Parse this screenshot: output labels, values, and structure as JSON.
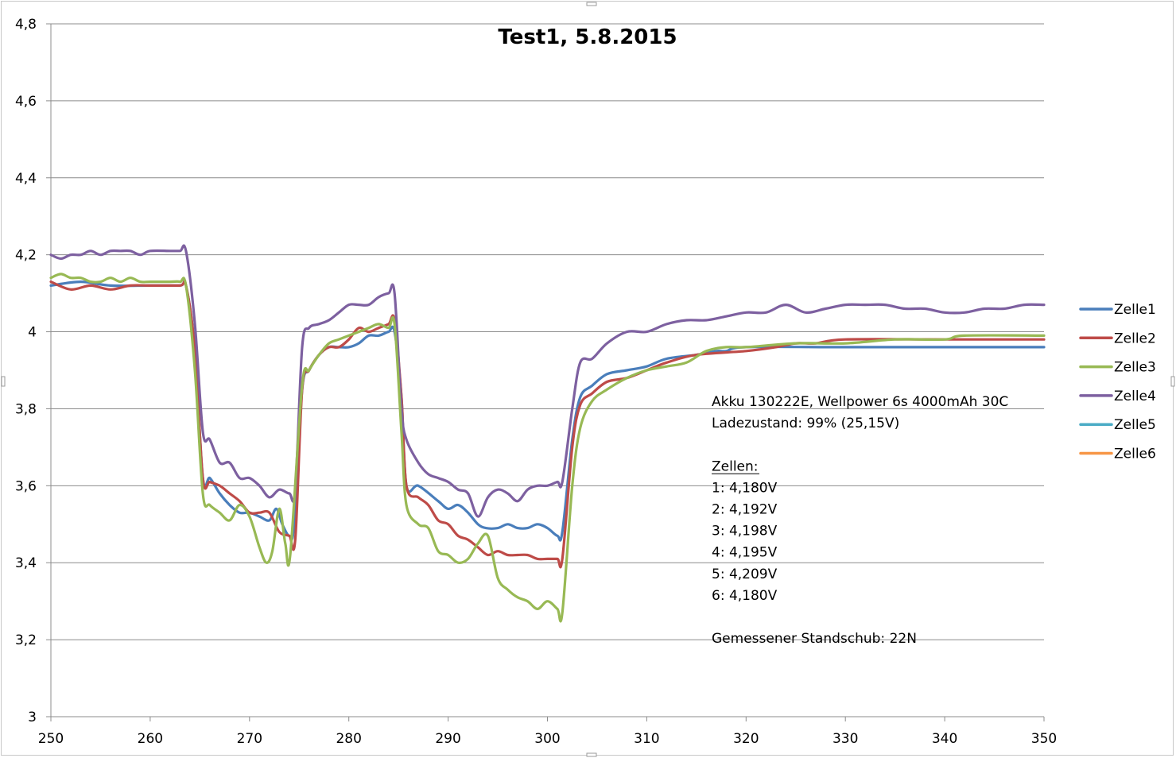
{
  "chart_data": {
    "type": "line",
    "title": "Test1, 5.8.2015",
    "xlabel": "",
    "ylabel": "",
    "xlim": [
      250,
      350
    ],
    "ylim": [
      3,
      4.8
    ],
    "x_ticks": [
      "250",
      "260",
      "270",
      "280",
      "290",
      "300",
      "310",
      "320",
      "330",
      "340",
      "350"
    ],
    "y_ticks": [
      "3",
      "3,2",
      "3,4",
      "3,6",
      "3,8",
      "4",
      "4,2",
      "4,4",
      "4,6",
      "4,8"
    ],
    "grid": "horizontal",
    "legend_position": "right",
    "series": [
      {
        "name": "Zelle1",
        "color": "#4a7ebb",
        "points": [
          [
            250,
            4.12
          ],
          [
            253,
            4.13
          ],
          [
            256,
            4.12
          ],
          [
            260,
            4.12
          ],
          [
            263,
            4.12
          ],
          [
            263.6,
            4.12
          ],
          [
            264.5,
            3.95
          ],
          [
            265.3,
            3.62
          ],
          [
            266,
            3.62
          ],
          [
            267,
            3.58
          ],
          [
            268,
            3.55
          ],
          [
            269,
            3.53
          ],
          [
            270,
            3.53
          ],
          [
            271,
            3.52
          ],
          [
            272,
            3.51
          ],
          [
            272.7,
            3.54
          ],
          [
            273.3,
            3.5
          ],
          [
            274,
            3.47
          ],
          [
            274.5,
            3.5
          ],
          [
            275.3,
            3.85
          ],
          [
            276,
            3.9
          ],
          [
            277,
            3.94
          ],
          [
            278,
            3.96
          ],
          [
            279,
            3.96
          ],
          [
            280,
            3.96
          ],
          [
            281,
            3.97
          ],
          [
            282,
            3.99
          ],
          [
            283,
            3.99
          ],
          [
            284,
            4.0
          ],
          [
            284.6,
            4.0
          ],
          [
            285.3,
            3.83
          ],
          [
            285.8,
            3.6
          ],
          [
            287,
            3.6
          ],
          [
            289,
            3.56
          ],
          [
            290,
            3.54
          ],
          [
            291,
            3.55
          ],
          [
            292,
            3.53
          ],
          [
            293,
            3.5
          ],
          [
            293.8,
            3.49
          ],
          [
            295,
            3.49
          ],
          [
            296,
            3.5
          ],
          [
            297,
            3.49
          ],
          [
            298,
            3.49
          ],
          [
            299,
            3.5
          ],
          [
            300,
            3.49
          ],
          [
            301,
            3.47
          ],
          [
            301.5,
            3.48
          ],
          [
            302.5,
            3.72
          ],
          [
            303.3,
            3.83
          ],
          [
            304.5,
            3.86
          ],
          [
            306,
            3.89
          ],
          [
            308,
            3.9
          ],
          [
            310,
            3.91
          ],
          [
            312,
            3.93
          ],
          [
            315,
            3.94
          ],
          [
            317,
            3.95
          ],
          [
            318,
            3.95
          ],
          [
            320,
            3.96
          ],
          [
            330,
            3.96
          ],
          [
            340,
            3.96
          ],
          [
            350,
            3.96
          ]
        ]
      },
      {
        "name": "Zelle2",
        "color": "#be4b48",
        "points": [
          [
            250,
            4.13
          ],
          [
            252,
            4.11
          ],
          [
            254,
            4.12
          ],
          [
            256,
            4.11
          ],
          [
            258,
            4.12
          ],
          [
            260,
            4.12
          ],
          [
            263,
            4.12
          ],
          [
            263.6,
            4.12
          ],
          [
            264.5,
            3.95
          ],
          [
            265.3,
            3.62
          ],
          [
            266,
            3.61
          ],
          [
            267,
            3.6
          ],
          [
            268,
            3.58
          ],
          [
            269,
            3.56
          ],
          [
            270,
            3.53
          ],
          [
            271,
            3.53
          ],
          [
            272,
            3.53
          ],
          [
            273,
            3.48
          ],
          [
            274,
            3.47
          ],
          [
            274.6,
            3.46
          ],
          [
            275.3,
            3.85
          ],
          [
            276,
            3.9
          ],
          [
            277,
            3.94
          ],
          [
            278,
            3.96
          ],
          [
            279,
            3.96
          ],
          [
            280,
            3.98
          ],
          [
            281,
            4.01
          ],
          [
            282,
            4.0
          ],
          [
            283,
            4.01
          ],
          [
            284,
            4.02
          ],
          [
            284.6,
            4.03
          ],
          [
            285.3,
            3.83
          ],
          [
            285.8,
            3.6
          ],
          [
            287,
            3.57
          ],
          [
            288,
            3.55
          ],
          [
            289,
            3.51
          ],
          [
            290,
            3.5
          ],
          [
            291,
            3.47
          ],
          [
            292,
            3.46
          ],
          [
            293,
            3.44
          ],
          [
            294,
            3.42
          ],
          [
            295,
            3.43
          ],
          [
            296,
            3.42
          ],
          [
            297,
            3.42
          ],
          [
            298,
            3.42
          ],
          [
            299,
            3.41
          ],
          [
            300,
            3.41
          ],
          [
            301,
            3.41
          ],
          [
            301.5,
            3.41
          ],
          [
            302.5,
            3.7
          ],
          [
            303.3,
            3.81
          ],
          [
            304.5,
            3.84
          ],
          [
            306,
            3.87
          ],
          [
            308,
            3.88
          ],
          [
            310,
            3.9
          ],
          [
            312,
            3.92
          ],
          [
            315,
            3.94
          ],
          [
            320,
            3.95
          ],
          [
            323,
            3.96
          ],
          [
            325,
            3.97
          ],
          [
            327,
            3.97
          ],
          [
            330,
            3.98
          ],
          [
            340,
            3.98
          ],
          [
            350,
            3.98
          ]
        ]
      },
      {
        "name": "Zelle3",
        "color": "#98b954",
        "points": [
          [
            250,
            4.14
          ],
          [
            251,
            4.15
          ],
          [
            252,
            4.14
          ],
          [
            253,
            4.14
          ],
          [
            254,
            4.13
          ],
          [
            255,
            4.13
          ],
          [
            256,
            4.14
          ],
          [
            257,
            4.13
          ],
          [
            258,
            4.14
          ],
          [
            259,
            4.13
          ],
          [
            260,
            4.13
          ],
          [
            262,
            4.13
          ],
          [
            263,
            4.13
          ],
          [
            263.6,
            4.12
          ],
          [
            264.5,
            3.9
          ],
          [
            265.3,
            3.58
          ],
          [
            266,
            3.55
          ],
          [
            267,
            3.53
          ],
          [
            268,
            3.51
          ],
          [
            269,
            3.55
          ],
          [
            270,
            3.52
          ],
          [
            271,
            3.44
          ],
          [
            271.7,
            3.4
          ],
          [
            272.3,
            3.43
          ],
          [
            273,
            3.54
          ],
          [
            273.6,
            3.45
          ],
          [
            274.1,
            3.42
          ],
          [
            275.3,
            3.86
          ],
          [
            276,
            3.9
          ],
          [
            277,
            3.94
          ],
          [
            278,
            3.97
          ],
          [
            279,
            3.98
          ],
          [
            280,
            3.99
          ],
          [
            281,
            4.0
          ],
          [
            282,
            4.01
          ],
          [
            283,
            4.02
          ],
          [
            284,
            4.01
          ],
          [
            284.6,
            4.02
          ],
          [
            285.3,
            3.74
          ],
          [
            285.8,
            3.55
          ],
          [
            287,
            3.5
          ],
          [
            288,
            3.49
          ],
          [
            289,
            3.43
          ],
          [
            290,
            3.42
          ],
          [
            291,
            3.4
          ],
          [
            292,
            3.41
          ],
          [
            293,
            3.45
          ],
          [
            294,
            3.47
          ],
          [
            295,
            3.36
          ],
          [
            296,
            3.33
          ],
          [
            297,
            3.31
          ],
          [
            298,
            3.3
          ],
          [
            299,
            3.28
          ],
          [
            300,
            3.3
          ],
          [
            301,
            3.28
          ],
          [
            301.5,
            3.27
          ],
          [
            302.5,
            3.6
          ],
          [
            303.3,
            3.75
          ],
          [
            304.5,
            3.82
          ],
          [
            306,
            3.85
          ],
          [
            308,
            3.88
          ],
          [
            310,
            3.9
          ],
          [
            312,
            3.91
          ],
          [
            314,
            3.92
          ],
          [
            316,
            3.95
          ],
          [
            318,
            3.96
          ],
          [
            320,
            3.96
          ],
          [
            325,
            3.97
          ],
          [
            330,
            3.97
          ],
          [
            335,
            3.98
          ],
          [
            340,
            3.98
          ],
          [
            342,
            3.99
          ],
          [
            350,
            3.99
          ]
        ]
      },
      {
        "name": "Zelle4",
        "color": "#7d60a0",
        "points": [
          [
            250,
            4.2
          ],
          [
            251,
            4.19
          ],
          [
            252,
            4.2
          ],
          [
            253,
            4.2
          ],
          [
            254,
            4.21
          ],
          [
            255,
            4.2
          ],
          [
            256,
            4.21
          ],
          [
            257,
            4.21
          ],
          [
            258,
            4.21
          ],
          [
            259,
            4.2
          ],
          [
            260,
            4.21
          ],
          [
            262,
            4.21
          ],
          [
            263,
            4.21
          ],
          [
            263.6,
            4.21
          ],
          [
            264.5,
            4.02
          ],
          [
            265.3,
            3.74
          ],
          [
            266,
            3.72
          ],
          [
            267,
            3.66
          ],
          [
            268,
            3.66
          ],
          [
            269,
            3.62
          ],
          [
            270,
            3.62
          ],
          [
            271,
            3.6
          ],
          [
            272,
            3.57
          ],
          [
            273,
            3.59
          ],
          [
            274,
            3.58
          ],
          [
            274.6,
            3.59
          ],
          [
            275.3,
            3.96
          ],
          [
            276,
            4.01
          ],
          [
            277,
            4.02
          ],
          [
            278,
            4.03
          ],
          [
            279,
            4.05
          ],
          [
            280,
            4.07
          ],
          [
            281,
            4.07
          ],
          [
            282,
            4.07
          ],
          [
            283,
            4.09
          ],
          [
            284,
            4.1
          ],
          [
            284.6,
            4.1
          ],
          [
            285.3,
            3.8
          ],
          [
            285.8,
            3.72
          ],
          [
            287,
            3.66
          ],
          [
            288,
            3.63
          ],
          [
            289,
            3.62
          ],
          [
            290,
            3.61
          ],
          [
            291,
            3.59
          ],
          [
            292,
            3.58
          ],
          [
            293,
            3.52
          ],
          [
            294,
            3.57
          ],
          [
            295,
            3.59
          ],
          [
            296,
            3.58
          ],
          [
            297,
            3.56
          ],
          [
            298,
            3.59
          ],
          [
            299,
            3.6
          ],
          [
            300,
            3.6
          ],
          [
            301,
            3.61
          ],
          [
            301.5,
            3.61
          ],
          [
            302.5,
            3.8
          ],
          [
            303.3,
            3.92
          ],
          [
            304.5,
            3.93
          ],
          [
            306,
            3.97
          ],
          [
            308,
            4.0
          ],
          [
            310,
            4.0
          ],
          [
            312,
            4.02
          ],
          [
            314,
            4.03
          ],
          [
            316,
            4.03
          ],
          [
            318,
            4.04
          ],
          [
            320,
            4.05
          ],
          [
            322,
            4.05
          ],
          [
            324,
            4.07
          ],
          [
            326,
            4.05
          ],
          [
            328,
            4.06
          ],
          [
            330,
            4.07
          ],
          [
            332,
            4.07
          ],
          [
            334,
            4.07
          ],
          [
            336,
            4.06
          ],
          [
            338,
            4.06
          ],
          [
            340,
            4.05
          ],
          [
            342,
            4.05
          ],
          [
            344,
            4.06
          ],
          [
            346,
            4.06
          ],
          [
            348,
            4.07
          ],
          [
            350,
            4.07
          ]
        ]
      },
      {
        "name": "Zelle5",
        "color": "#4bacc6",
        "points": []
      },
      {
        "name": "Zelle6",
        "color": "#f79646",
        "points": []
      }
    ],
    "annotation": {
      "lines": [
        "Akku 130222E, Wellpower 6s 4000mAh 30C",
        "Ladezustand: 99% (25,15V)",
        "",
        "Zellen:",
        "1:  4,180V",
        "2:  4,192V",
        "3:  4,198V",
        "4:  4,195V",
        "5:  4,209V",
        "6:  4,180V",
        "",
        "Gemessener Standschub: 22N"
      ]
    }
  }
}
